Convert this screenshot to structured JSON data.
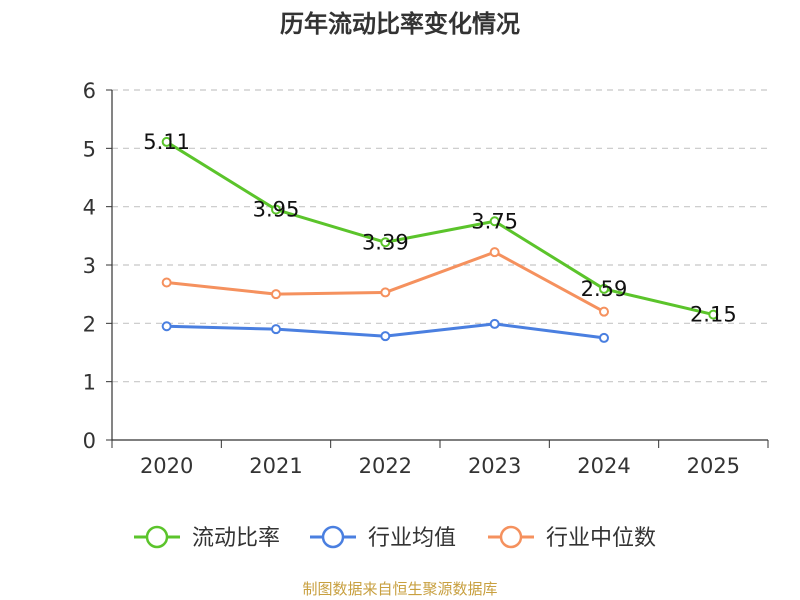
{
  "chart_data": {
    "type": "line",
    "title": "历年流动比率变化情况",
    "categories": [
      "2020",
      "2021",
      "2022",
      "2023",
      "2024",
      "2025"
    ],
    "ylim": [
      0,
      6
    ],
    "yticks": [
      0,
      1,
      2,
      3,
      4,
      5,
      6
    ],
    "grid": true,
    "series": [
      {
        "name": "流动比率",
        "color": "#5bc42b",
        "values": [
          5.11,
          3.95,
          3.39,
          3.75,
          2.59,
          2.15
        ],
        "labels": [
          "5.11",
          "3.95",
          "3.39",
          "3.75",
          "2.59",
          "2.15"
        ]
      },
      {
        "name": "行业均值",
        "color": "#4a7fe0",
        "values": [
          1.95,
          1.9,
          1.78,
          1.99,
          1.75,
          null
        ]
      },
      {
        "name": "行业中位数",
        "color": "#f5915e",
        "values": [
          2.7,
          2.5,
          2.53,
          3.22,
          2.2,
          null
        ]
      }
    ],
    "legend_position": "bottom",
    "source": "制图数据来自恒生聚源数据库",
    "source_color": "#c8a040"
  }
}
